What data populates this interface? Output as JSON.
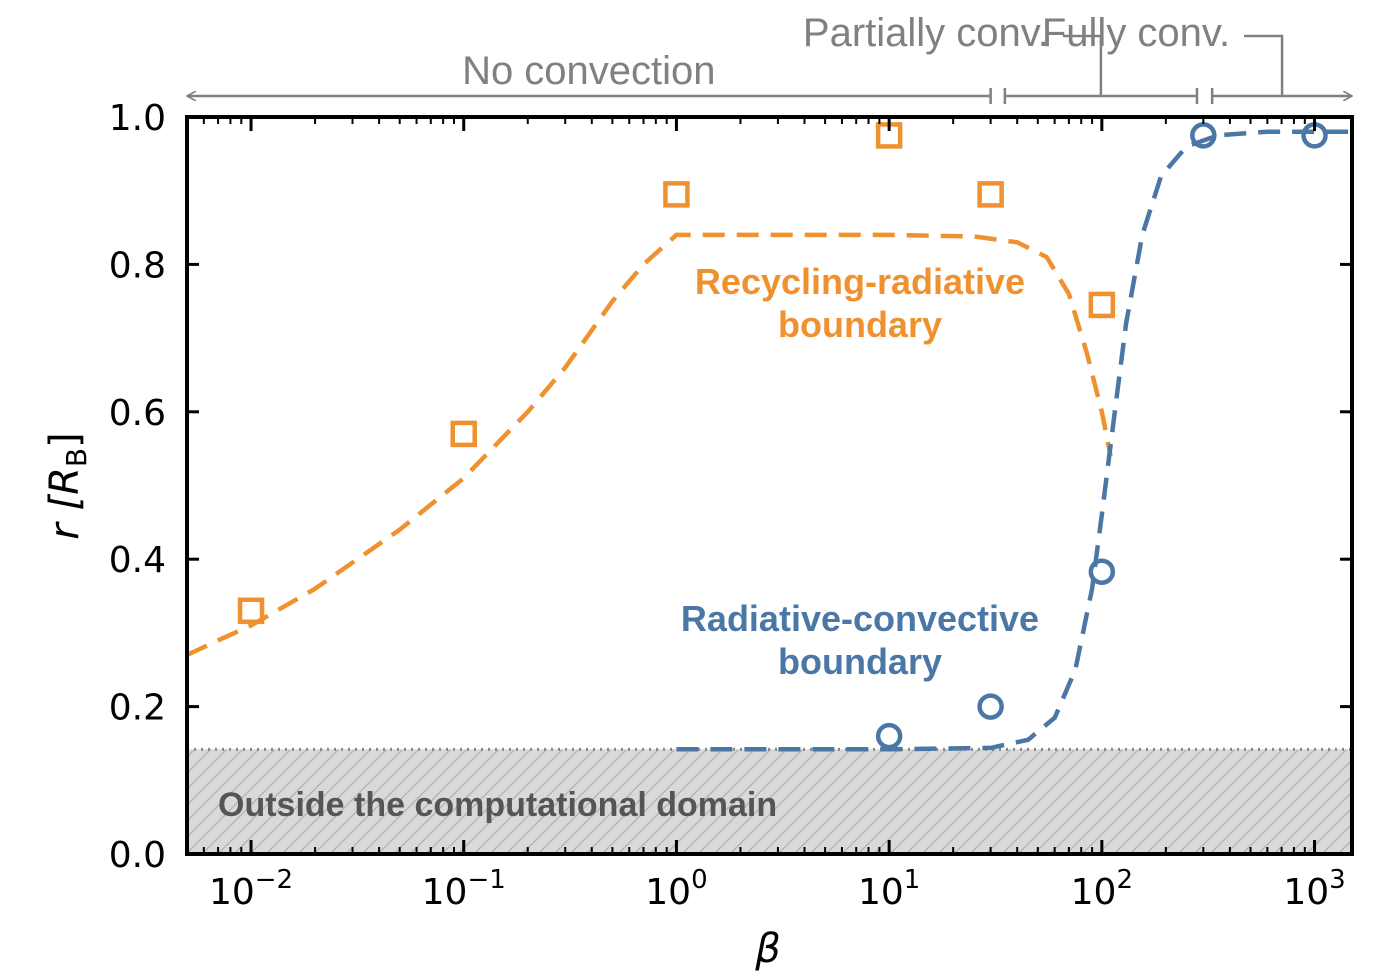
{
  "chart_data": {
    "type": "scatter",
    "xscale": "log",
    "xlim": [
      0.005,
      1500
    ],
    "ylim": [
      0.0,
      1.0
    ],
    "xlabel": "β",
    "ylabel_main": "r [R",
    "ylabel_sub": "B",
    "ylabel_close": "]",
    "x_ticks": [
      {
        "value": 0.01,
        "base": "10",
        "exp": "−2"
      },
      {
        "value": 0.1,
        "base": "10",
        "exp": "−1"
      },
      {
        "value": 1,
        "base": "10",
        "exp": "0"
      },
      {
        "value": 10,
        "base": "10",
        "exp": "1"
      },
      {
        "value": 100,
        "base": "10",
        "exp": "2"
      },
      {
        "value": 1000,
        "base": "10",
        "exp": "3"
      }
    ],
    "y_ticks": [
      {
        "value": 0.0,
        "label": "0.0"
      },
      {
        "value": 0.2,
        "label": "0.2"
      },
      {
        "value": 0.4,
        "label": "0.4"
      },
      {
        "value": 0.6,
        "label": "0.6"
      },
      {
        "value": 0.8,
        "label": "0.8"
      },
      {
        "value": 1.0,
        "label": "1.0"
      }
    ],
    "series": [
      {
        "name": "Recycling-radiative boundary",
        "label_line1": "Recycling-radiative",
        "label_line2": "boundary",
        "color": "#F0912F",
        "marker": "square",
        "points": [
          {
            "x": 0.01,
            "y": 0.33
          },
          {
            "x": 0.1,
            "y": 0.57
          },
          {
            "x": 1,
            "y": 0.895
          },
          {
            "x": 10,
            "y": 0.975
          },
          {
            "x": 30,
            "y": 0.895
          },
          {
            "x": 100,
            "y": 0.745
          }
        ],
        "fit": [
          {
            "x": 0.005,
            "y": 0.27
          },
          {
            "x": 0.007,
            "y": 0.29
          },
          {
            "x": 0.01,
            "y": 0.31
          },
          {
            "x": 0.02,
            "y": 0.36
          },
          {
            "x": 0.05,
            "y": 0.44
          },
          {
            "x": 0.1,
            "y": 0.51
          },
          {
            "x": 0.2,
            "y": 0.6
          },
          {
            "x": 0.3,
            "y": 0.66
          },
          {
            "x": 0.5,
            "y": 0.75
          },
          {
            "x": 0.7,
            "y": 0.8
          },
          {
            "x": 1,
            "y": 0.84
          },
          {
            "x": 3,
            "y": 0.84
          },
          {
            "x": 10,
            "y": 0.84
          },
          {
            "x": 25,
            "y": 0.838
          },
          {
            "x": 40,
            "y": 0.83
          },
          {
            "x": 55,
            "y": 0.81
          },
          {
            "x": 70,
            "y": 0.76
          },
          {
            "x": 85,
            "y": 0.68
          },
          {
            "x": 100,
            "y": 0.6
          },
          {
            "x": 110,
            "y": 0.54
          }
        ]
      },
      {
        "name": "Radiative-convective boundary",
        "label_line1": "Radiative-convective",
        "label_line2": "boundary",
        "color": "#4B77A6",
        "marker": "circle",
        "points": [
          {
            "x": 10,
            "y": 0.16
          },
          {
            "x": 30,
            "y": 0.2
          },
          {
            "x": 100,
            "y": 0.383
          },
          {
            "x": 300,
            "y": 0.975
          },
          {
            "x": 1000,
            "y": 0.975
          }
        ],
        "fit": [
          {
            "x": 1,
            "y": 0.142
          },
          {
            "x": 10,
            "y": 0.142
          },
          {
            "x": 30,
            "y": 0.144
          },
          {
            "x": 45,
            "y": 0.155
          },
          {
            "x": 60,
            "y": 0.185
          },
          {
            "x": 75,
            "y": 0.25
          },
          {
            "x": 90,
            "y": 0.36
          },
          {
            "x": 100,
            "y": 0.46
          },
          {
            "x": 115,
            "y": 0.6
          },
          {
            "x": 130,
            "y": 0.72
          },
          {
            "x": 155,
            "y": 0.84
          },
          {
            "x": 190,
            "y": 0.92
          },
          {
            "x": 250,
            "y": 0.96
          },
          {
            "x": 350,
            "y": 0.975
          },
          {
            "x": 600,
            "y": 0.98
          },
          {
            "x": 1500,
            "y": 0.98
          }
        ]
      }
    ],
    "domain_cutoff": 0.142,
    "domain_label": "Outside the computational domain",
    "regimes": [
      {
        "label": "No convection",
        "from": 0.005,
        "to": 30
      },
      {
        "label": "Partially conv.",
        "from": 35,
        "to": 280
      },
      {
        "label": "Fully conv.",
        "from": 330,
        "to": 1500
      }
    ]
  }
}
